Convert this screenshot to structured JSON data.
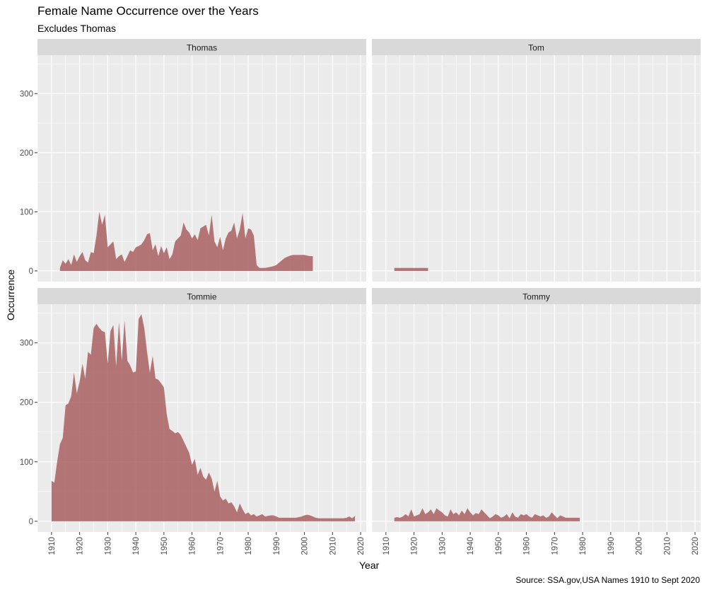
{
  "title": "Female Name Occurrence over the Years",
  "subtitle": "Excludes Thomas",
  "caption": "Source: SSA.gov,USA Names 1910 to Sept 2020",
  "chart_data": {
    "type": "area",
    "title": "Female Name Occurrence over the Years",
    "subtitle": "Excludes Thomas",
    "xlabel": "Year",
    "ylabel": "Occurrence",
    "x_ticks": [
      1910,
      1920,
      1930,
      1940,
      1950,
      1960,
      1970,
      1980,
      1990,
      2000,
      2010,
      2020
    ],
    "y_ticks": [
      0,
      100,
      200,
      300
    ],
    "xlim": [
      1905,
      2022
    ],
    "ylim": [
      -18,
      365
    ],
    "fill_color": "#a25252",
    "panel_background": "#ebebeb",
    "strip_background": "#d9d9d9",
    "grid": true,
    "facets": [
      {
        "name": "Thomas",
        "x": [
          1913,
          1914,
          1915,
          1916,
          1917,
          1918,
          1919,
          1920,
          1921,
          1922,
          1923,
          1924,
          1925,
          1926,
          1927,
          1928,
          1929,
          1930,
          1931,
          1932,
          1933,
          1934,
          1935,
          1936,
          1937,
          1938,
          1939,
          1940,
          1941,
          1942,
          1943,
          1944,
          1945,
          1946,
          1947,
          1948,
          1949,
          1950,
          1951,
          1952,
          1953,
          1954,
          1955,
          1956,
          1957,
          1958,
          1959,
          1960,
          1961,
          1962,
          1963,
          1964,
          1965,
          1966,
          1967,
          1968,
          1969,
          1970,
          1971,
          1972,
          1973,
          1974,
          1975,
          1976,
          1977,
          1978,
          1979,
          1980,
          1981,
          1982,
          1983,
          1984,
          1985,
          1986,
          1987,
          1988,
          1989,
          1990,
          1991,
          1992,
          1993,
          1994,
          1995,
          1996,
          1997,
          1998,
          1999,
          2000,
          2001,
          2002,
          2003
        ],
        "values": [
          5,
          18,
          12,
          20,
          10,
          28,
          15,
          25,
          32,
          18,
          14,
          32,
          30,
          60,
          100,
          78,
          95,
          40,
          45,
          50,
          20,
          25,
          28,
          15,
          25,
          35,
          32,
          40,
          42,
          45,
          52,
          62,
          64,
          35,
          45,
          25,
          42,
          30,
          40,
          20,
          28,
          50,
          55,
          60,
          82,
          70,
          65,
          55,
          62,
          52,
          72,
          75,
          78,
          60,
          95,
          50,
          40,
          58,
          35,
          55,
          65,
          68,
          82,
          55,
          70,
          98,
          55,
          72,
          70,
          60,
          10,
          5,
          5,
          5,
          6,
          7,
          8,
          10,
          14,
          18,
          22,
          24,
          26,
          27,
          27,
          27,
          27,
          27,
          26,
          25,
          25
        ],
        "missing_ranges": [
          [
            "1910",
            "1912"
          ]
        ]
      },
      {
        "name": "Tom",
        "x": [
          1913,
          1914,
          1915,
          1916,
          1917,
          1918,
          1919,
          1920,
          1921,
          1922,
          1923,
          1924,
          1925
        ],
        "values": [
          5,
          5,
          5,
          5,
          5,
          5,
          5,
          5,
          5,
          5,
          5,
          5,
          5
        ]
      },
      {
        "name": "Tommie",
        "x": [
          1910,
          1911,
          1912,
          1913,
          1914,
          1915,
          1916,
          1917,
          1918,
          1919,
          1920,
          1921,
          1922,
          1923,
          1924,
          1925,
          1926,
          1927,
          1928,
          1929,
          1930,
          1931,
          1932,
          1933,
          1934,
          1935,
          1936,
          1937,
          1938,
          1939,
          1940,
          1941,
          1942,
          1943,
          1944,
          1945,
          1946,
          1947,
          1948,
          1949,
          1950,
          1951,
          1952,
          1953,
          1954,
          1955,
          1956,
          1957,
          1958,
          1959,
          1960,
          1961,
          1962,
          1963,
          1964,
          1965,
          1966,
          1967,
          1968,
          1969,
          1970,
          1971,
          1972,
          1973,
          1974,
          1975,
          1976,
          1977,
          1978,
          1979,
          1980,
          1981,
          1982,
          1983,
          1984,
          1985,
          1986,
          1987,
          1988,
          1989,
          1990,
          1991,
          1992,
          1993,
          1994,
          1995,
          1996,
          1997,
          1998,
          1999,
          2000,
          2001,
          2002,
          2003,
          2004,
          2005,
          2006,
          2007,
          2008,
          2009,
          2010,
          2011,
          2012,
          2013,
          2014,
          2015,
          2016,
          2017,
          2018
        ],
        "values": [
          68,
          65,
          100,
          130,
          140,
          195,
          198,
          210,
          250,
          215,
          235,
          265,
          240,
          285,
          280,
          325,
          332,
          325,
          320,
          318,
          265,
          320,
          330,
          260,
          335,
          270,
          338,
          270,
          262,
          250,
          252,
          340,
          348,
          325,
          285,
          250,
          278,
          240,
          238,
          232,
          225,
          180,
          155,
          152,
          148,
          150,
          145,
          135,
          125,
          115,
          95,
          105,
          78,
          90,
          75,
          70,
          82,
          72,
          50,
          68,
          42,
          35,
          38,
          30,
          32,
          25,
          15,
          30,
          20,
          12,
          15,
          10,
          12,
          8,
          10,
          12,
          8,
          9,
          10,
          10,
          8,
          6,
          6,
          6,
          6,
          6,
          6,
          6,
          7,
          8,
          10,
          11,
          10,
          8,
          6,
          5,
          5,
          5,
          5,
          5,
          5,
          5,
          5,
          5,
          5,
          6,
          8,
          5,
          9
        ]
      },
      {
        "name": "Tommy",
        "x": [
          1913,
          1914,
          1915,
          1916,
          1917,
          1918,
          1919,
          1920,
          1921,
          1922,
          1923,
          1924,
          1925,
          1926,
          1927,
          1928,
          1929,
          1930,
          1931,
          1932,
          1933,
          1934,
          1935,
          1936,
          1937,
          1938,
          1939,
          1940,
          1941,
          1942,
          1943,
          1944,
          1945,
          1946,
          1947,
          1948,
          1949,
          1950,
          1951,
          1952,
          1953,
          1954,
          1955,
          1956,
          1957,
          1958,
          1959,
          1960,
          1961,
          1962,
          1963,
          1964,
          1965,
          1966,
          1967,
          1968,
          1969,
          1970,
          1971,
          1972,
          1973,
          1974,
          1975,
          1976,
          1977,
          1978,
          1979
        ],
        "values": [
          6,
          7,
          6,
          8,
          12,
          8,
          20,
          8,
          10,
          12,
          22,
          12,
          15,
          20,
          12,
          22,
          18,
          15,
          10,
          8,
          20,
          12,
          15,
          10,
          18,
          12,
          22,
          15,
          10,
          14,
          12,
          20,
          15,
          10,
          5,
          8,
          12,
          10,
          6,
          8,
          12,
          5,
          15,
          8,
          6,
          12,
          10,
          12,
          8,
          6,
          12,
          10,
          8,
          10,
          6,
          8,
          15,
          10,
          5,
          10,
          8,
          6,
          6,
          6,
          6,
          6,
          6
        ]
      }
    ]
  }
}
